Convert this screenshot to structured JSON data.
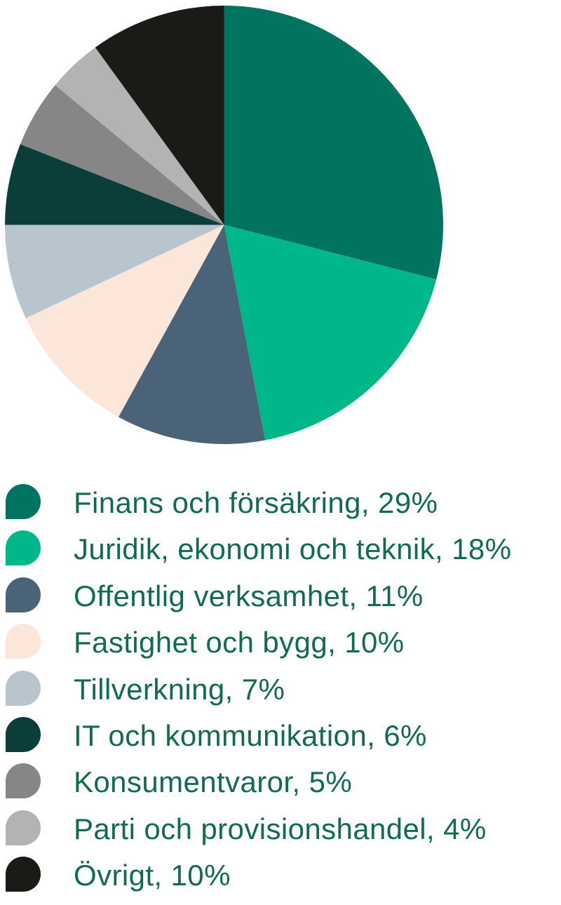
{
  "chart_data": {
    "type": "pie",
    "title": "",
    "start_angle_deg": 0,
    "direction": "clockwise",
    "legend_position": "bottom-left",
    "background_color": "#ffffff",
    "legend_text_color": "#116A56",
    "items": [
      {
        "label": "Finans och försäkring",
        "value": 29,
        "color": "#00745F",
        "display": "Finans och försäkring, 29%"
      },
      {
        "label": "Juridik, ekonomi och teknik",
        "value": 18,
        "color": "#00B78A",
        "display": "Juridik, ekonomi och teknik, 18%"
      },
      {
        "label": "Offentlig verksamhet",
        "value": 11,
        "color": "#4A6378",
        "display": "Offentlig verksamhet, 11%"
      },
      {
        "label": "Fastighet och bygg",
        "value": 10,
        "color": "#FCE6DA",
        "display": "Fastighet och bygg, 10%"
      },
      {
        "label": "Tillverkning",
        "value": 7,
        "color": "#B9C5CD",
        "display": "Tillverkning, 7%"
      },
      {
        "label": "IT och kommunikation",
        "value": 6,
        "color": "#0B3D3A",
        "display": "IT och kommunikation, 6%"
      },
      {
        "label": "Konsumentvaror",
        "value": 5,
        "color": "#868686",
        "display": "Konsumentvaror, 5%"
      },
      {
        "label": "Parti och provisionshandel",
        "value": 4,
        "color": "#B3B3B3",
        "display": "Parti och provisionshandel, 4%"
      },
      {
        "label": "Övrigt",
        "value": 10,
        "color": "#1A1A17",
        "display": "Övrigt, 10%"
      }
    ]
  }
}
